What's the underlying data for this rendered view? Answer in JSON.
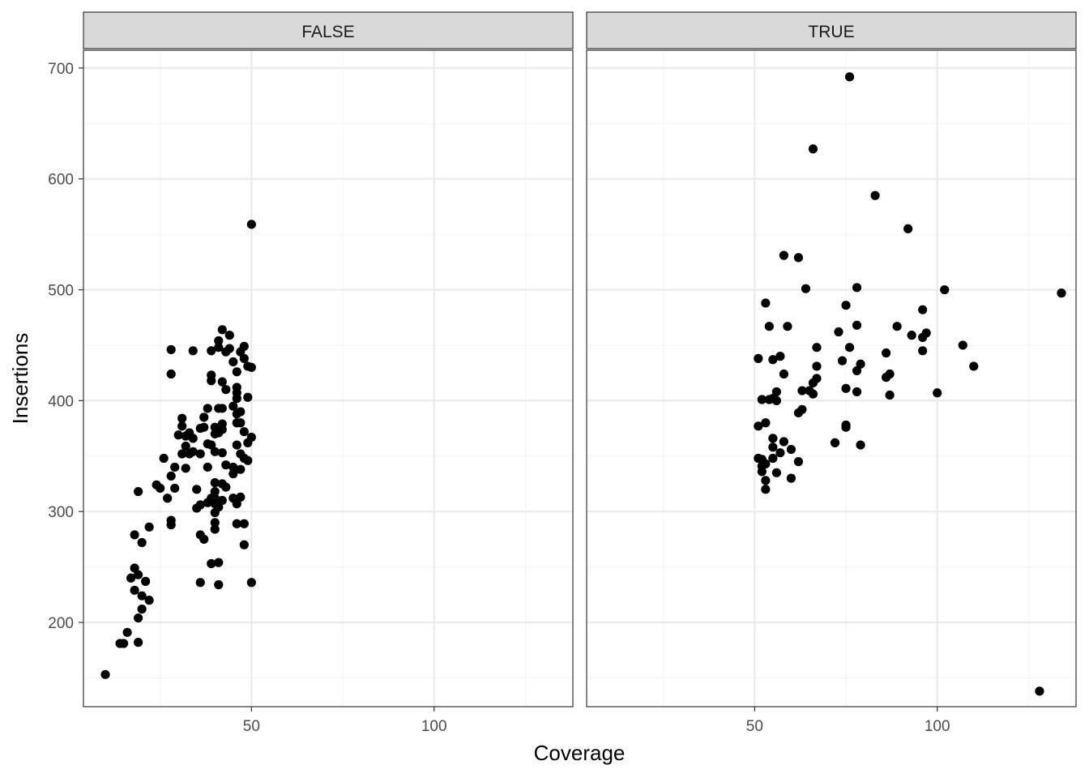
{
  "chart_data": {
    "type": "scatter",
    "facet_variable_levels": [
      "FALSE",
      "TRUE"
    ],
    "xlabel": "Coverage",
    "ylabel": "Insertions",
    "xlim": [
      4,
      138
    ],
    "ylim": [
      124,
      716
    ],
    "x_ticks": [
      50,
      100
    ],
    "x_minor_ticks": [
      25,
      75,
      125
    ],
    "y_ticks": [
      200,
      300,
      400,
      500,
      600,
      700
    ],
    "y_minor_ticks": [
      150,
      250,
      350,
      450,
      550,
      650
    ],
    "grid": true,
    "colors": {
      "point": "#000000",
      "strip_bg": "#d9d9d9",
      "grid_major": "#ebebeb",
      "grid_minor": "#f5f5f5",
      "panel_border": "#333333"
    },
    "panels": [
      {
        "label": "FALSE",
        "points": [
          [
            50,
            559
          ],
          [
            10,
            153
          ],
          [
            14,
            181
          ],
          [
            15,
            181
          ],
          [
            16,
            191
          ],
          [
            19,
            182
          ],
          [
            19,
            204
          ],
          [
            20,
            212
          ],
          [
            20,
            224
          ],
          [
            22,
            220
          ],
          [
            18,
            229
          ],
          [
            21,
            237
          ],
          [
            17,
            240
          ],
          [
            19,
            243
          ],
          [
            18,
            249
          ],
          [
            20,
            272
          ],
          [
            18,
            279
          ],
          [
            22,
            286
          ],
          [
            19,
            318
          ],
          [
            24,
            324
          ],
          [
            25,
            321
          ],
          [
            27,
            312
          ],
          [
            26,
            348
          ],
          [
            29,
            321
          ],
          [
            28,
            332
          ],
          [
            29,
            340
          ],
          [
            28,
            288
          ],
          [
            28,
            292
          ],
          [
            28,
            424
          ],
          [
            28,
            446
          ],
          [
            34,
            445
          ],
          [
            30,
            369
          ],
          [
            31,
            377
          ],
          [
            32,
            368
          ],
          [
            31,
            384
          ],
          [
            31,
            352
          ],
          [
            32,
            339
          ],
          [
            33,
            352
          ],
          [
            34,
            354
          ],
          [
            32,
            359
          ],
          [
            33,
            371
          ],
          [
            34,
            366
          ],
          [
            35,
            320
          ],
          [
            35,
            303
          ],
          [
            36,
            306
          ],
          [
            36,
            352
          ],
          [
            36,
            375
          ],
          [
            36,
            279
          ],
          [
            37,
            275
          ],
          [
            36,
            236
          ],
          [
            37,
            376
          ],
          [
            37,
            385
          ],
          [
            38,
            393
          ],
          [
            38,
            361
          ],
          [
            38,
            340
          ],
          [
            38,
            308
          ],
          [
            39,
            312
          ],
          [
            39,
            253
          ],
          [
            39,
            360
          ],
          [
            39,
            418
          ],
          [
            39,
            423
          ],
          [
            39,
            445
          ],
          [
            40,
            370
          ],
          [
            40,
            376
          ],
          [
            40,
            354
          ],
          [
            40,
            326
          ],
          [
            40,
            318
          ],
          [
            40,
            312
          ],
          [
            40,
            307
          ],
          [
            40,
            299
          ],
          [
            40,
            290
          ],
          [
            40,
            284
          ],
          [
            41,
            254
          ],
          [
            41,
            234
          ],
          [
            41,
            371
          ],
          [
            41,
            393
          ],
          [
            41,
            448
          ],
          [
            41,
            454
          ],
          [
            41,
            304
          ],
          [
            42,
            379
          ],
          [
            42,
            374
          ],
          [
            42,
            353
          ],
          [
            42,
            325
          ],
          [
            42,
            310
          ],
          [
            42,
            393
          ],
          [
            42,
            417
          ],
          [
            42,
            464
          ],
          [
            43,
            444
          ],
          [
            43,
            410
          ],
          [
            43,
            342
          ],
          [
            43,
            322
          ],
          [
            44,
            447
          ],
          [
            44,
            459
          ],
          [
            45,
            435
          ],
          [
            45,
            395
          ],
          [
            45,
            340
          ],
          [
            45,
            334
          ],
          [
            45,
            312
          ],
          [
            46,
            289
          ],
          [
            46,
            307
          ],
          [
            46,
            360
          ],
          [
            46,
            380
          ],
          [
            46,
            388
          ],
          [
            46,
            402
          ],
          [
            46,
            407
          ],
          [
            46,
            412
          ],
          [
            46,
            426
          ],
          [
            47,
            444
          ],
          [
            47,
            390
          ],
          [
            47,
            380
          ],
          [
            47,
            352
          ],
          [
            47,
            338
          ],
          [
            47,
            313
          ],
          [
            48,
            289
          ],
          [
            48,
            270
          ],
          [
            48,
            438
          ],
          [
            48,
            449
          ],
          [
            48,
            372
          ],
          [
            48,
            348
          ],
          [
            49,
            362
          ],
          [
            49,
            403
          ],
          [
            49,
            346
          ],
          [
            49,
            431
          ],
          [
            50,
            430
          ],
          [
            50,
            367
          ],
          [
            50,
            236
          ]
        ]
      },
      {
        "label": "TRUE",
        "points": [
          [
            76,
            692
          ],
          [
            66,
            627
          ],
          [
            83,
            585
          ],
          [
            92,
            555
          ],
          [
            58,
            531
          ],
          [
            62,
            529
          ],
          [
            64,
            501
          ],
          [
            78,
            502
          ],
          [
            102,
            500
          ],
          [
            134,
            497
          ],
          [
            53,
            488
          ],
          [
            75,
            486
          ],
          [
            96,
            482
          ],
          [
            54,
            467
          ],
          [
            59,
            467
          ],
          [
            78,
            468
          ],
          [
            89,
            467
          ],
          [
            73,
            462
          ],
          [
            93,
            459
          ],
          [
            96,
            457
          ],
          [
            97,
            461
          ],
          [
            76,
            448
          ],
          [
            67,
            448
          ],
          [
            107,
            450
          ],
          [
            51,
            438
          ],
          [
            55,
            437
          ],
          [
            57,
            440
          ],
          [
            74,
            436
          ],
          [
            79,
            433
          ],
          [
            96,
            445
          ],
          [
            86,
            443
          ],
          [
            110,
            431
          ],
          [
            67,
            431
          ],
          [
            58,
            424
          ],
          [
            78,
            427
          ],
          [
            87,
            424
          ],
          [
            86,
            421
          ],
          [
            67,
            420
          ],
          [
            66,
            416
          ],
          [
            63,
            409
          ],
          [
            65,
            409
          ],
          [
            66,
            406
          ],
          [
            56,
            408
          ],
          [
            55,
            402
          ],
          [
            52,
            401
          ],
          [
            54,
            401
          ],
          [
            56,
            400
          ],
          [
            75,
            411
          ],
          [
            78,
            408
          ],
          [
            87,
            405
          ],
          [
            100,
            407
          ],
          [
            62,
            389
          ],
          [
            63,
            392
          ],
          [
            51,
            377
          ],
          [
            53,
            380
          ],
          [
            75,
            378
          ],
          [
            75,
            376
          ],
          [
            72,
            362
          ],
          [
            79,
            360
          ],
          [
            55,
            366
          ],
          [
            55,
            358
          ],
          [
            57,
            353
          ],
          [
            58,
            363
          ],
          [
            60,
            356
          ],
          [
            51,
            348
          ],
          [
            52,
            347
          ],
          [
            52,
            341
          ],
          [
            52,
            336
          ],
          [
            53,
            343
          ],
          [
            55,
            348
          ],
          [
            53,
            328
          ],
          [
            56,
            335
          ],
          [
            60,
            330
          ],
          [
            62,
            345
          ],
          [
            53,
            320
          ],
          [
            128,
            138
          ]
        ]
      }
    ]
  }
}
